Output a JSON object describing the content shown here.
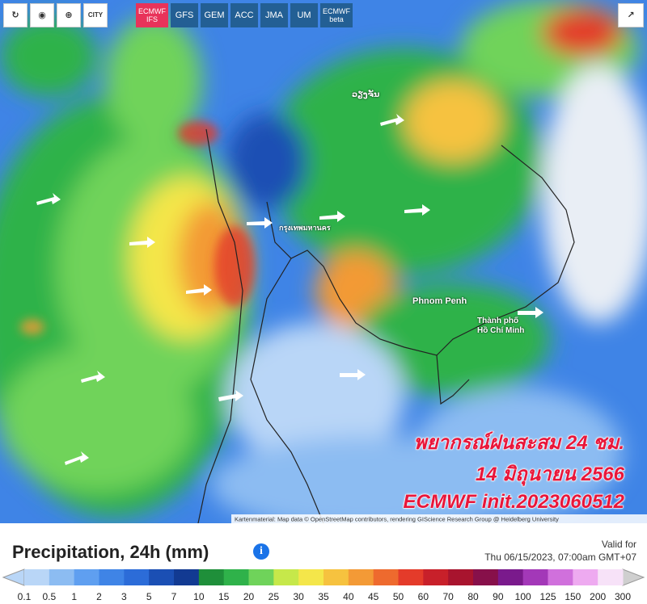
{
  "toolbar": {
    "city": "CITY",
    "models": [
      "ECMWF IFS",
      "GFS",
      "GEM",
      "ACC",
      "JMA",
      "UM",
      "ECMWF beta"
    ]
  },
  "map": {
    "places": [
      "กรุงเทพมหานคร",
      "Phnom Penh",
      "Thành phố",
      "Hồ Chí Minh",
      "ວຽງຈັນ"
    ],
    "attribution": "Kartenmaterial: Map data © OpenStreetMap contributors, rendering GIScience Research Group @ Heidelberg University"
  },
  "overlay": [
    "พยากรณ์ฝนสะสม 24 ชม.",
    "14 มิถุนายน 2566",
    "ECMWF init.2023060512"
  ],
  "legend": {
    "title": "Precipitation, 24h (mm)",
    "valid_label": "Valid for",
    "valid_time": "Thu 06/15/2023, 07:00am GMT+07",
    "scale": [
      {
        "label": "0.1",
        "color": "#b9d6f7"
      },
      {
        "label": "0.5",
        "color": "#8cbcf2"
      },
      {
        "label": "1",
        "color": "#5f9ff0"
      },
      {
        "label": "2",
        "color": "#3f84e6"
      },
      {
        "label": "3",
        "color": "#2c6cd8"
      },
      {
        "label": "5",
        "color": "#1b4fb4"
      },
      {
        "label": "7",
        "color": "#123a92"
      },
      {
        "label": "10",
        "color": "#1f8f3a"
      },
      {
        "label": "15",
        "color": "#2fb24a"
      },
      {
        "label": "20",
        "color": "#6fd35a"
      },
      {
        "label": "25",
        "color": "#c6e84a"
      },
      {
        "label": "30",
        "color": "#f4e64a"
      },
      {
        "label": "35",
        "color": "#f6c23f"
      },
      {
        "label": "40",
        "color": "#f39a36"
      },
      {
        "label": "45",
        "color": "#ee6a2e"
      },
      {
        "label": "50",
        "color": "#e43b2a"
      },
      {
        "label": "60",
        "color": "#c8202a"
      },
      {
        "label": "70",
        "color": "#a8142e"
      },
      {
        "label": "80",
        "color": "#87104a"
      },
      {
        "label": "90",
        "color": "#7a1a8c"
      },
      {
        "label": "100",
        "color": "#a338b8"
      },
      {
        "label": "125",
        "color": "#d070dc"
      },
      {
        "label": "150",
        "color": "#eeaaf0"
      },
      {
        "label": "200",
        "color": "#f7e2f8"
      },
      {
        "label": "300",
        "color": "#cfcfcf"
      }
    ]
  }
}
